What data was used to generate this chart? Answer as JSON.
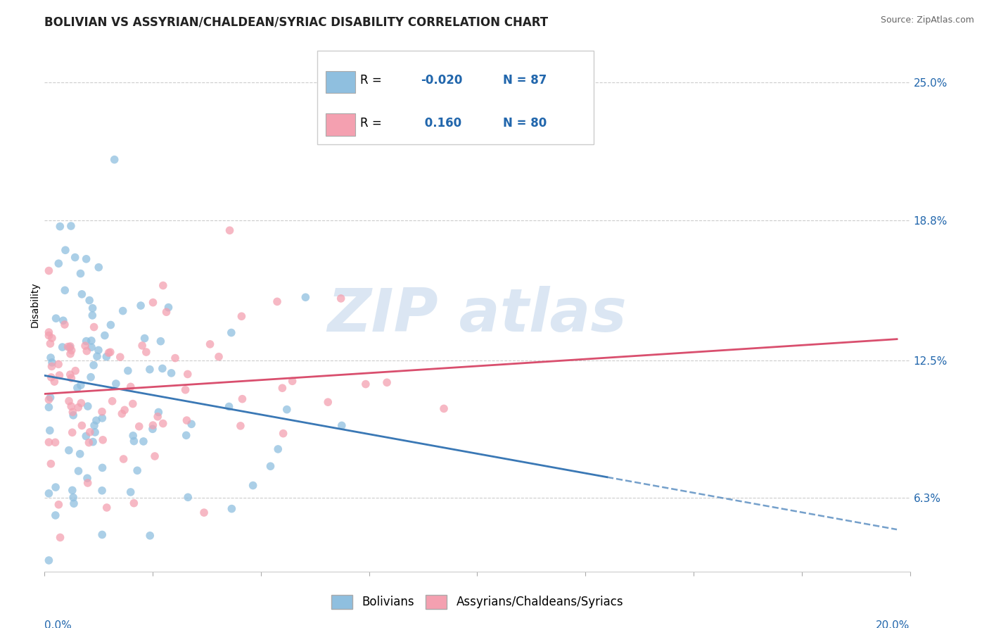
{
  "title": "BOLIVIAN VS ASSYRIAN/CHALDEAN/SYRIAC DISABILITY CORRELATION CHART",
  "source": "Source: ZipAtlas.com",
  "ylabel": "Disability",
  "xlim": [
    0.0,
    0.2
  ],
  "ylim": [
    0.03,
    0.27
  ],
  "yticks": [
    0.063,
    0.125,
    0.188,
    0.25
  ],
  "ytick_labels": [
    "6.3%",
    "12.5%",
    "18.8%",
    "25.0%"
  ],
  "xtick_left_label": "0.0%",
  "xtick_right_label": "20.0%",
  "series": [
    {
      "name": "Bolivians",
      "color": "#8fbfdf",
      "alpha": 0.75,
      "R": -0.02,
      "N": 87,
      "line_style_solid": "--",
      "line_color": "#3a78b5",
      "r_display": "-0.020"
    },
    {
      "name": "Assyrians/Chaldeans/Syriacs",
      "color": "#f4a0b0",
      "alpha": 0.75,
      "R": 0.16,
      "N": 80,
      "line_style_solid": "-",
      "line_color": "#d94f6e",
      "r_display": " 0.160"
    }
  ],
  "legend_color": "#2166ac",
  "background_color": "#ffffff",
  "grid_color": "#cccccc",
  "title_fontsize": 12,
  "axis_label_fontsize": 10,
  "tick_fontsize": 11,
  "legend_fontsize": 12,
  "watermark_text": "ZIP atlas",
  "watermark_color": "#b8cfe8",
  "watermark_alpha": 0.5
}
